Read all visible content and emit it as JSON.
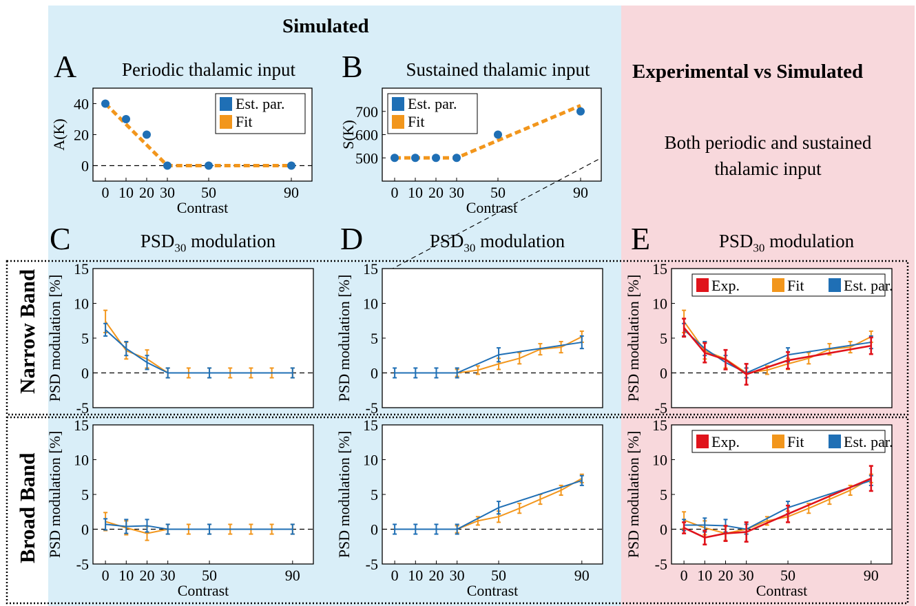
{
  "header": {
    "simulated": "Simulated",
    "experimental": "Experimental vs Simulated",
    "experimental_note": [
      "Both periodic and sustained",
      "thalamic input"
    ]
  },
  "row_labels": {
    "narrow": "Narrow Band",
    "broad": "Broad Band"
  },
  "panels": {
    "A": {
      "letter": "A",
      "title": "Periodic thalamic input"
    },
    "B": {
      "letter": "B",
      "title": "Sustained thalamic input"
    },
    "C": {
      "letter": "C",
      "title": "PSD",
      "title_sub": "30",
      "title_rest": " modulation"
    },
    "D": {
      "letter": "D",
      "title": "PSD",
      "title_sub": "30",
      "title_rest": " modulation"
    },
    "E": {
      "letter": "E",
      "title": "PSD",
      "title_sub": "30",
      "title_rest": " modulation"
    }
  },
  "colors": {
    "est": "#1f6fb5",
    "fit": "#f2961c",
    "exp": "#e0131b"
  },
  "chart_data": [
    {
      "id": "A",
      "type": "scatter",
      "xlabel": "Contrast",
      "ylabel": "A(K)",
      "xlim": [
        -6,
        100
      ],
      "ylim": [
        -10,
        50
      ],
      "xticks": [
        0,
        10,
        20,
        30,
        50,
        90
      ],
      "yticks": [
        0,
        20,
        40
      ],
      "legend": {
        "position": "top-right",
        "entries": [
          "Est. par.",
          "Fit"
        ]
      },
      "points": {
        "name": "Est. par.",
        "x": [
          0,
          10,
          20,
          30,
          50,
          90
        ],
        "y": [
          40,
          30,
          20,
          0,
          0,
          0
        ]
      },
      "fit": {
        "name": "Fit",
        "x": [
          0,
          30,
          90
        ],
        "y": [
          40,
          0,
          0
        ]
      }
    },
    {
      "id": "B",
      "type": "scatter",
      "xlabel": "Contrast",
      "ylabel": "S(K)",
      "xlim": [
        -6,
        100
      ],
      "ylim": [
        400,
        800
      ],
      "xticks": [
        0,
        10,
        20,
        30,
        50,
        90
      ],
      "yticks": [
        500,
        600,
        700
      ],
      "legend": {
        "position": "top-left",
        "entries": [
          "Est. par.",
          "Fit"
        ]
      },
      "points": {
        "name": "Est. par.",
        "x": [
          0,
          10,
          20,
          30,
          50,
          90
        ],
        "y": [
          500,
          500,
          500,
          500,
          600,
          700
        ]
      },
      "fit": {
        "name": "Fit",
        "x": [
          0,
          30,
          90
        ],
        "y": [
          500,
          500,
          725
        ]
      }
    },
    {
      "id": "C_narrow",
      "type": "line",
      "ylabel": "PSD modulation [%]",
      "xlabel": "",
      "xlim": [
        -6,
        100
      ],
      "ylim": [
        -5,
        15
      ],
      "xticks": [],
      "yticks": [
        -5,
        0,
        5,
        10,
        15
      ],
      "series": [
        {
          "name": "Fit",
          "x": [
            0,
            10,
            20,
            30,
            40,
            50,
            60,
            70,
            80,
            90
          ],
          "y": [
            7.4,
            3.2,
            2.0,
            0,
            0,
            0,
            0,
            0,
            0,
            0
          ],
          "err": [
            1.6,
            1.2,
            1.3,
            0.7,
            0.7,
            0.7,
            0.7,
            0.7,
            0.7,
            0.7
          ]
        },
        {
          "name": "Est. par.",
          "x": [
            0,
            10,
            20,
            30,
            50,
            90
          ],
          "y": [
            6.2,
            3.5,
            1.5,
            0,
            0,
            0
          ],
          "err": [
            0.9,
            1.0,
            1.0,
            0.7,
            0.7,
            0.7
          ]
        }
      ]
    },
    {
      "id": "D_narrow",
      "type": "line",
      "ylabel": "PSD modulation [%]",
      "xlabel": "",
      "xlim": [
        -6,
        100
      ],
      "ylim": [
        -5,
        15
      ],
      "xticks": [],
      "yticks": [
        -5,
        0,
        5,
        10,
        15
      ],
      "series": [
        {
          "name": "Fit",
          "x": [
            30,
            40,
            50,
            60,
            70,
            80,
            90
          ],
          "y": [
            0,
            0.4,
            1.3,
            2.1,
            3.4,
            3.7,
            5.2
          ],
          "err": [
            0.5,
            0.6,
            0.8,
            0.8,
            0.8,
            0.8,
            0.8
          ]
        },
        {
          "name": "Est. par.",
          "x": [
            0,
            10,
            20,
            30,
            50,
            90
          ],
          "y": [
            0,
            0,
            0,
            0,
            2.6,
            4.4
          ],
          "err": [
            0.7,
            0.7,
            0.7,
            0.7,
            1.0,
            0.9
          ]
        }
      ]
    },
    {
      "id": "E_narrow",
      "type": "line",
      "ylabel": "PSD modulation [%]",
      "xlabel": "",
      "xlim": [
        -6,
        100
      ],
      "ylim": [
        -5,
        15
      ],
      "xticks": [],
      "yticks": [
        -5,
        0,
        5,
        10,
        15
      ],
      "legend": {
        "position": "top",
        "entries": [
          "Exp.",
          "Fit",
          "Est. par."
        ]
      },
      "series": [
        {
          "name": "Fit",
          "x": [
            0,
            10,
            20,
            30,
            40,
            50,
            60,
            70,
            80,
            90
          ],
          "y": [
            7.4,
            3.2,
            2.0,
            0,
            0.4,
            1.3,
            2.1,
            3.4,
            3.7,
            5.2
          ],
          "err": [
            1.6,
            1.2,
            1.3,
            0.7,
            0.6,
            0.8,
            0.8,
            0.8,
            0.8,
            0.8
          ]
        },
        {
          "name": "Est. par.",
          "x": [
            0,
            10,
            20,
            30,
            50,
            90
          ],
          "y": [
            6.2,
            3.5,
            1.5,
            0,
            2.6,
            4.4
          ],
          "err": [
            0.9,
            1.0,
            1.0,
            0.7,
            1.0,
            0.9
          ]
        },
        {
          "name": "Exp.",
          "x": [
            0,
            10,
            20,
            30,
            50,
            90
          ],
          "y": [
            6.5,
            2.9,
            1.9,
            -0.2,
            1.8,
            3.9
          ],
          "err": [
            1.3,
            1.4,
            1.4,
            1.5,
            1.2,
            1.2
          ]
        }
      ]
    },
    {
      "id": "C_broad",
      "type": "line",
      "ylabel": "PSD modulation [%]",
      "xlabel": "Contrast",
      "xlim": [
        -6,
        100
      ],
      "ylim": [
        -5,
        15
      ],
      "xticks": [
        0,
        10,
        20,
        30,
        50,
        90
      ],
      "yticks": [
        -5,
        0,
        5,
        10,
        15
      ],
      "series": [
        {
          "name": "Fit",
          "x": [
            0,
            10,
            20,
            30,
            40,
            50,
            60,
            70,
            80,
            90
          ],
          "y": [
            1.1,
            0.2,
            -0.6,
            0,
            0,
            0,
            0,
            0,
            0,
            0
          ],
          "err": [
            1.3,
            1.0,
            1.0,
            0.7,
            0.7,
            0.7,
            0.7,
            0.7,
            0.7,
            0.7
          ]
        },
        {
          "name": "Est. par.",
          "x": [
            0,
            10,
            20,
            30,
            50,
            90
          ],
          "y": [
            0.7,
            0.4,
            0.5,
            0,
            0,
            0
          ],
          "err": [
            0.8,
            1.0,
            0.9,
            0.7,
            0.7,
            0.7
          ]
        }
      ]
    },
    {
      "id": "D_broad",
      "type": "line",
      "ylabel": "PSD modulation [%]",
      "xlabel": "Contrast",
      "xlim": [
        -6,
        100
      ],
      "ylim": [
        -5,
        15
      ],
      "xticks": [
        0,
        10,
        20,
        30,
        50,
        90
      ],
      "yticks": [
        -5,
        0,
        5,
        10,
        15
      ],
      "series": [
        {
          "name": "Fit",
          "x": [
            30,
            40,
            50,
            60,
            70,
            80,
            90
          ],
          "y": [
            0,
            1.2,
            1.8,
            3.0,
            4.3,
            5.6,
            7.3
          ],
          "err": [
            0.5,
            0.6,
            0.8,
            0.7,
            0.7,
            0.7,
            0.6
          ]
        },
        {
          "name": "Est. par.",
          "x": [
            0,
            10,
            20,
            30,
            50,
            90
          ],
          "y": [
            0,
            0,
            0,
            0,
            3.1,
            7.0
          ],
          "err": [
            0.7,
            0.7,
            0.7,
            0.7,
            0.9,
            0.7
          ]
        }
      ]
    },
    {
      "id": "E_broad",
      "type": "line",
      "ylabel": "PSD modulation [%]",
      "xlabel": "Contrast",
      "xlim": [
        -6,
        100
      ],
      "ylim": [
        -5,
        15
      ],
      "xticks": [
        0,
        10,
        20,
        30,
        50,
        90
      ],
      "yticks": [
        -5,
        0,
        5,
        10,
        15
      ],
      "legend": {
        "position": "top",
        "entries": [
          "Exp.",
          "Fit",
          "Est. par."
        ]
      },
      "series": [
        {
          "name": "Fit",
          "x": [
            0,
            10,
            20,
            30,
            40,
            50,
            60,
            70,
            80,
            90
          ],
          "y": [
            1.3,
            0.2,
            -0.6,
            0,
            1.2,
            1.8,
            3.0,
            4.3,
            5.6,
            7.3
          ],
          "err": [
            1.2,
            1.0,
            1.0,
            0.7,
            0.6,
            0.8,
            0.7,
            0.7,
            0.7,
            0.6
          ]
        },
        {
          "name": "Est. par.",
          "x": [
            0,
            10,
            20,
            30,
            50,
            90
          ],
          "y": [
            0.6,
            0.6,
            0.5,
            0,
            3.1,
            7.0
          ],
          "err": [
            0.8,
            1.0,
            0.9,
            0.7,
            0.9,
            0.7
          ]
        },
        {
          "name": "Exp.",
          "x": [
            0,
            10,
            20,
            30,
            50,
            90
          ],
          "y": [
            0.2,
            -1.2,
            -0.6,
            -0.4,
            2.2,
            7.3
          ],
          "err": [
            0.8,
            1.0,
            1.1,
            1.4,
            1.2,
            1.8
          ]
        }
      ]
    }
  ]
}
